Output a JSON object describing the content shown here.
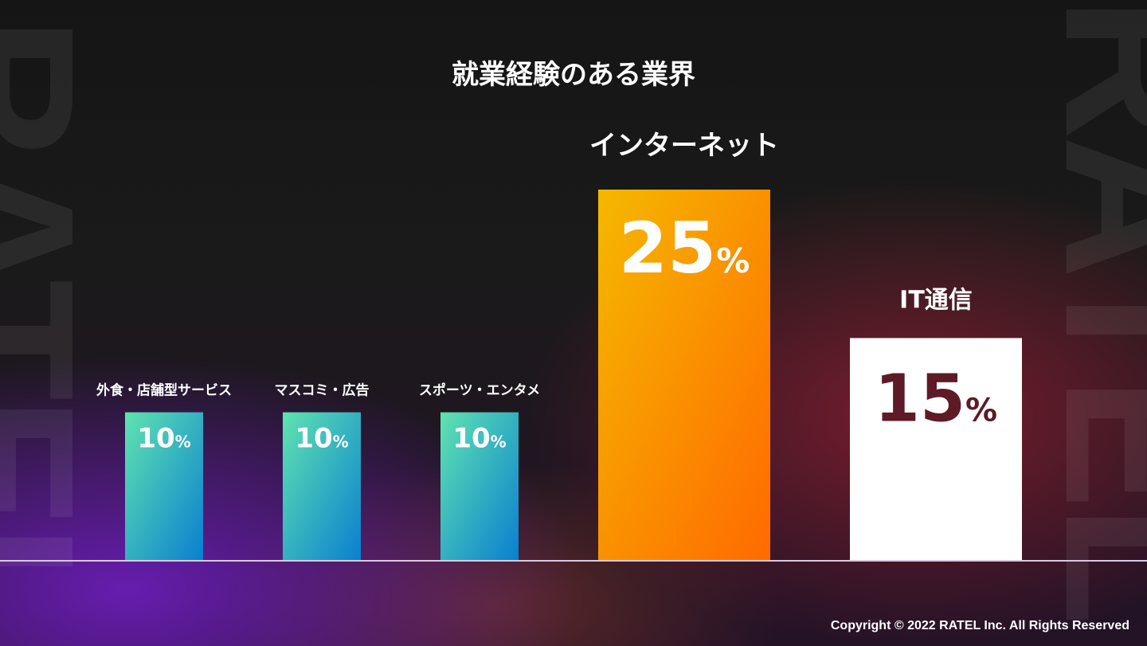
{
  "slide": {
    "title": "就業経験のある業界",
    "watermark": "RATEL",
    "copyright": "Copyright © 2022 RATEL Inc. All Rights Reserved"
  },
  "colors": {
    "teal_top": "#5fe3b0",
    "teal_bottom": "#0a7fd0",
    "orange_top": "#f5b800",
    "orange_bottom": "#ff6a00",
    "white_bar": "#ffffff",
    "dark_red_text": "#5e1a26",
    "baseline": "#d9c9e0"
  },
  "chart_data": {
    "type": "bar",
    "title": "就業経験のある業界",
    "categories": [
      "外食・店舗型サービス",
      "マスコミ・広告",
      "スポーツ・エンタメ",
      "インターネット",
      "IT通信"
    ],
    "values": [
      10,
      10,
      10,
      25,
      15
    ],
    "unit": "%",
    "ylim": [
      0,
      25
    ],
    "grid": false,
    "legend": "none"
  }
}
